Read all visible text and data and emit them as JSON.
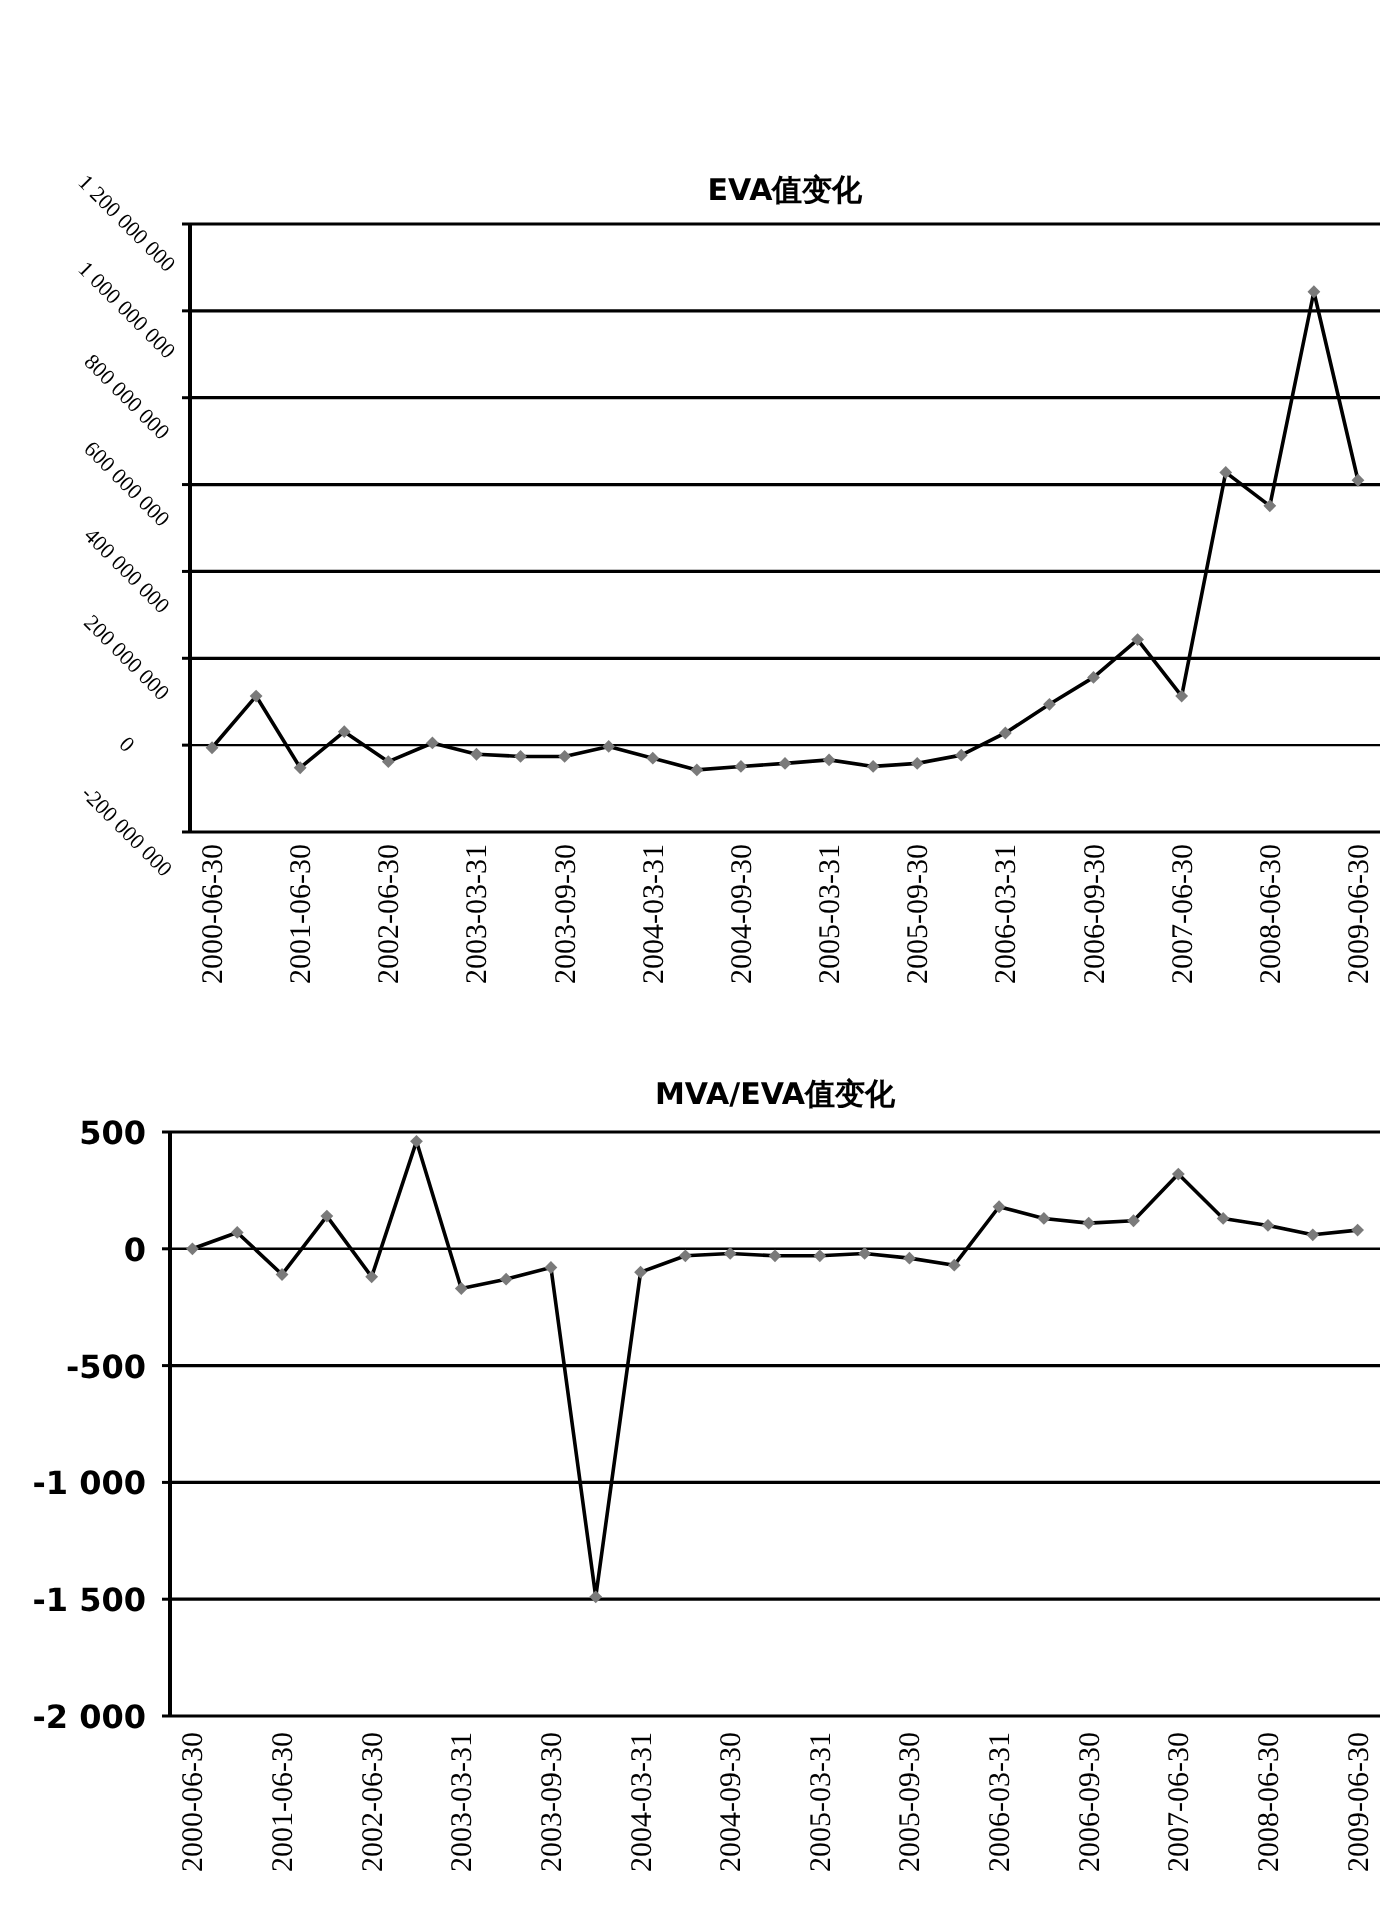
{
  "chart_data": [
    {
      "type": "line",
      "title": "EVA值变化",
      "categories": [
        "2000-06-30",
        null,
        "2001-06-30",
        null,
        "2002-06-30",
        null,
        "2003-03-31",
        null,
        "2003-09-30",
        null,
        "2004-03-31",
        null,
        "2004-09-30",
        null,
        "2005-03-31",
        null,
        "2005-09-30",
        null,
        "2006-03-31",
        null,
        "2006-09-30",
        null,
        "2007-06-30",
        null,
        "2008-06-30",
        null,
        "2009-06-30"
      ],
      "values": [
        -6000000,
        113000000,
        -52000000,
        31000000,
        -38000000,
        5000000,
        -21000000,
        -26000000,
        -26000000,
        -3000000,
        -30000000,
        -57000000,
        -49000000,
        -42000000,
        -34000000,
        -49000000,
        -42000000,
        -23000000,
        28000000,
        94000000,
        156000000,
        243000000,
        113000000,
        628000000,
        551000000,
        1044000000,
        610000000
      ],
      "color": "#000000",
      "marker": "diamond",
      "ylim": [
        -200000000,
        1200000000
      ],
      "yticks": [
        {
          "value": -200000000,
          "label": "-200 000 000"
        },
        {
          "value": 0,
          "label": "0"
        },
        {
          "value": 200000000,
          "label": "200 000 000"
        },
        {
          "value": 400000000,
          "label": "400 000 000"
        },
        {
          "value": 600000000,
          "label": "600 000 000"
        },
        {
          "value": 800000000,
          "label": "800 000 000"
        },
        {
          "value": 1000000000,
          "label": "1 000 000 000"
        },
        {
          "value": 1200000000,
          "label": "1 200 000 000"
        }
      ],
      "grid": "y"
    },
    {
      "type": "line",
      "title": "MVA/EVA值变化",
      "categories": [
        "2000-06-30",
        null,
        "2001-06-30",
        null,
        "2002-06-30",
        null,
        "2003-03-31",
        null,
        "2003-09-30",
        null,
        "2004-03-31",
        null,
        "2004-09-30",
        null,
        "2005-03-31",
        null,
        "2005-09-30",
        null,
        "2006-03-31",
        null,
        "2006-09-30",
        null,
        "2007-06-30",
        null,
        "2008-06-30",
        null,
        "2009-06-30"
      ],
      "values": [
        0,
        70,
        -110,
        140,
        -120,
        460,
        -170,
        -130,
        -80,
        -1490,
        -100,
        -30,
        -20,
        -30,
        -30,
        -20,
        -40,
        -70,
        180,
        130,
        110,
        120,
        320,
        130,
        100,
        60,
        80
      ],
      "color": "#000000",
      "marker": "diamond",
      "ylim": [
        -2000,
        500
      ],
      "yticks": [
        {
          "value": -2000,
          "label": "-2 000"
        },
        {
          "value": -1500,
          "label": "-1 500"
        },
        {
          "value": -1000,
          "label": "-1 000"
        },
        {
          "value": -500,
          "label": "-500"
        },
        0,
        500
      ],
      "grid": "y"
    }
  ]
}
